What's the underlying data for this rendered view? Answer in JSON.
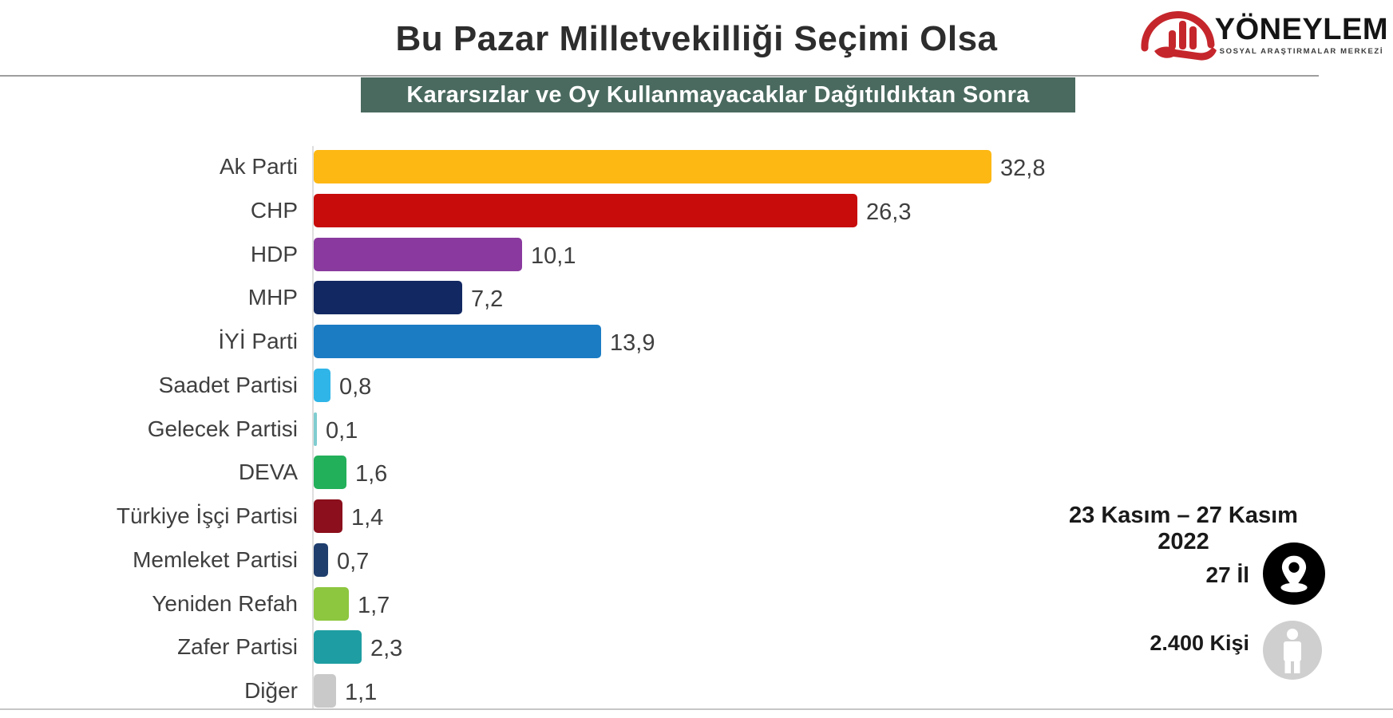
{
  "page": {
    "title": "Bu Pazar Milletvekilliği Seçimi Olsa"
  },
  "logo": {
    "name": "YÖNEYLEM",
    "tagline": "SOSYAL ARAŞTIRMALAR MERKEZİ",
    "accent_color": "#C5262C",
    "icon": "hand-holding-bar-chart-icon"
  },
  "banner": {
    "text": "Kararsızlar ve Oy Kullanmayacaklar Dağıtıldıktan Sonra",
    "bg_color": "#4A6A5F"
  },
  "chart_data": {
    "type": "bar",
    "orientation": "horizontal",
    "title": "Bu Pazar Milletvekilliği Seçimi Olsa",
    "subtitle": "Kararsızlar ve Oy Kullanmayacaklar Dağıtıldıktan Sonra",
    "unit": "percent",
    "grid": false,
    "legend": false,
    "value_label_position": "outside-end",
    "xlim": [
      0,
      34
    ],
    "categories": [
      "Ak Parti",
      "CHP",
      "HDP",
      "MHP",
      "İYİ Parti",
      "Saadet Partisi",
      "Gelecek Partisi",
      "DEVA",
      "Türkiye İşçi Partisi",
      "Memleket Partisi",
      "Yeniden Refah",
      "Zafer Partisi",
      "Diğer"
    ],
    "values": [
      32.8,
      26.3,
      10.1,
      7.2,
      13.9,
      0.8,
      0.1,
      1.6,
      1.4,
      0.7,
      1.7,
      2.3,
      1.1
    ],
    "value_labels": [
      "32,8",
      "26,3",
      "10,1",
      "7,2",
      "13,9",
      "0,8",
      "0,1",
      "1,6",
      "1,4",
      "0,7",
      "1,7",
      "2,3",
      "1,1"
    ],
    "bar_colors": [
      "#FDB813",
      "#C80B0B",
      "#8A3A9E",
      "#122862",
      "#1B7CC4",
      "#2FB5E8",
      "#7FCDD0",
      "#23B05A",
      "#8B0F1C",
      "#1F3E6E",
      "#8DC63F",
      "#1E9EA2",
      "#C9C9C9"
    ]
  },
  "survey_info": {
    "date_range": "23 Kasım – 27 Kasım 2022",
    "provinces": "27 İl",
    "provinces_icon": "location-pin-icon",
    "sample_size": "2.400 Kişi",
    "sample_icon": "person-icon"
  }
}
